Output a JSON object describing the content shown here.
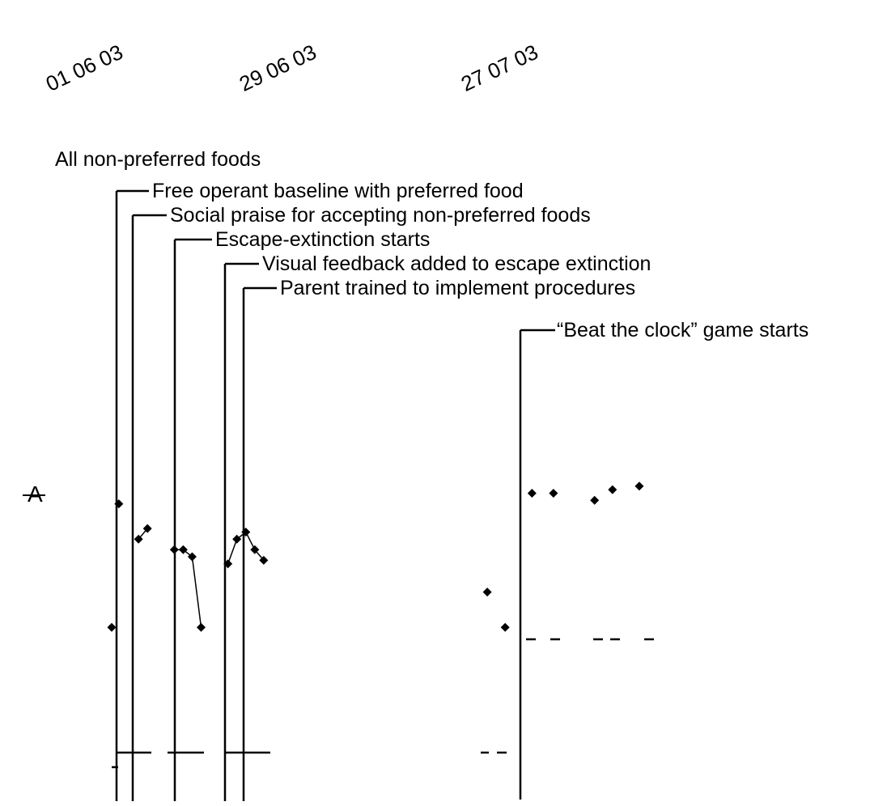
{
  "chart_data": {
    "type": "scatter",
    "title": "",
    "xlabel": "",
    "ylabel": "",
    "x_ticks": [
      "01 06 03",
      "29 06 03",
      "27 07 03"
    ],
    "series_label": "A",
    "annotations": [
      "All non-preferred foods",
      "Free operant baseline with preferred food",
      "Social praise for accepting non-preferred foods",
      "Escape-extinction starts",
      "Visual feedback added to escape extinction",
      "Parent trained to implement procedures",
      "“Beat the clock” game starts"
    ],
    "series": [
      {
        "name": "",
        "points": [
          {
            "day": 0,
            "value": 30
          },
          {
            "day": 0.4,
            "value": 65
          },
          {
            "day": 1.5,
            "value": 55
          },
          {
            "day": 2,
            "value": 58
          },
          {
            "day": 3.5,
            "value": 52
          },
          {
            "day": 4,
            "value": 52
          },
          {
            "day": 4.5,
            "value": 50
          },
          {
            "day": 5,
            "value": 30
          },
          {
            "day": 6.5,
            "value": 48
          },
          {
            "day": 7,
            "value": 55
          },
          {
            "day": 7.5,
            "value": 57
          },
          {
            "day": 8,
            "value": 52
          },
          {
            "day": 8.5,
            "value": 49
          },
          {
            "day": 21,
            "value": 40
          },
          {
            "day": 22,
            "value": 30
          },
          {
            "day": 23.5,
            "value": 68
          },
          {
            "day": 24.7,
            "value": 68
          },
          {
            "day": 27,
            "value": 66
          },
          {
            "day": 28,
            "value": 69
          },
          {
            "day": 29.5,
            "value": 70
          }
        ]
      }
    ],
    "criterion_dashes": [
      {
        "segment": 1,
        "value": 10
      },
      {
        "segment": 2,
        "value": 10
      },
      {
        "segment": 3,
        "value": 10
      },
      {
        "segment": 4,
        "value": 10
      },
      {
        "segment": 5,
        "value": 5
      },
      {
        "segment": 6,
        "value": 25
      }
    ],
    "grid": false,
    "legend": "none"
  }
}
